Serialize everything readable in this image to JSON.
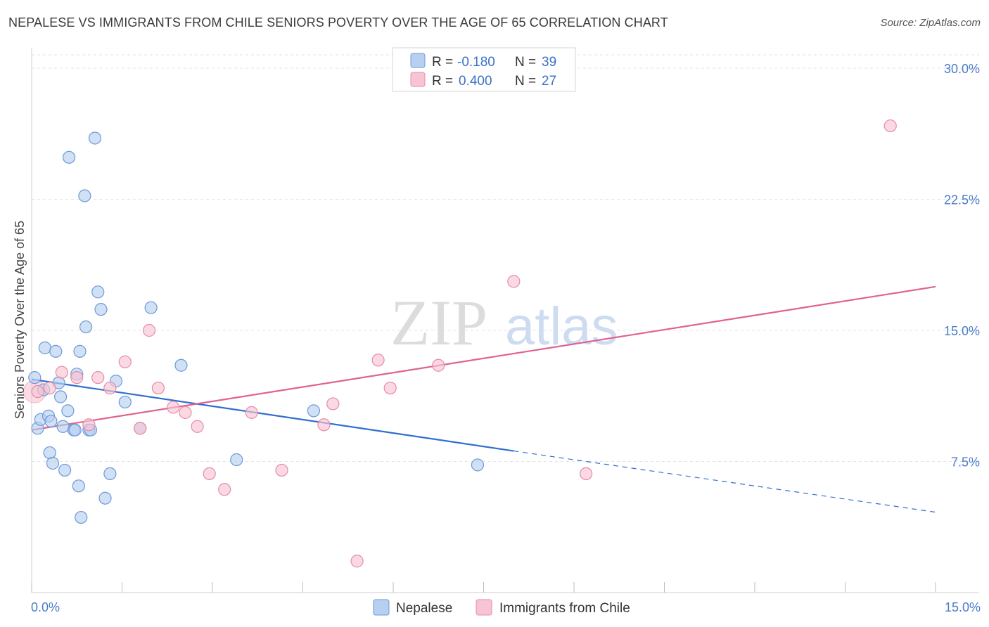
{
  "title": "NEPALESE VS IMMIGRANTS FROM CHILE SENIORS POVERTY OVER THE AGE OF 65 CORRELATION CHART",
  "source": "Source: ZipAtlas.com",
  "watermark": {
    "zip": "ZIP",
    "atlas": "atlas"
  },
  "colors": {
    "nepalese_fill": "#b7cff0",
    "nepalese_stroke": "#6d9ad8",
    "nepalese_line": "#2f6fce",
    "chile_fill": "#f7c4d4",
    "chile_stroke": "#e88aa8",
    "chile_line": "#e0628f",
    "axis_text": "#4a7cc9",
    "grid": "#e3e3e3"
  },
  "legend": {
    "rows": [
      {
        "r_label": "R =",
        "r_value": "-0.180",
        "n_label": "N =",
        "n_value": "39"
      },
      {
        "r_label": "R =",
        "r_value": "0.400",
        "n_label": "N =",
        "n_value": "27"
      }
    ]
  },
  "chart_data": {
    "type": "scatter",
    "title": "NEPALESE VS IMMIGRANTS FROM CHILE SENIORS POVERTY OVER THE AGE OF 65 CORRELATION CHART",
    "xlabel": "",
    "ylabel": "Seniors Poverty Over the Age of 65",
    "xlim": [
      0,
      15
    ],
    "ylim": [
      0,
      31.5
    ],
    "x_tick_labels": [
      "0.0%",
      "15.0%"
    ],
    "y_ticks": [
      7.5,
      15.0,
      22.5,
      30.0
    ],
    "y_tick_labels": [
      "7.5%",
      "15.0%",
      "22.5%",
      "30.0%"
    ],
    "legend_entries": [
      "Nepalese",
      "Immigrants from Chile"
    ],
    "series": [
      {
        "name": "Nepalese",
        "points": [
          [
            0.05,
            12.3
          ],
          [
            0.1,
            9.4
          ],
          [
            0.15,
            9.9
          ],
          [
            0.2,
            11.6
          ],
          [
            0.22,
            14.0
          ],
          [
            0.28,
            10.1
          ],
          [
            0.3,
            8.0
          ],
          [
            0.32,
            9.8
          ],
          [
            0.35,
            7.4
          ],
          [
            0.4,
            13.8
          ],
          [
            0.45,
            12.0
          ],
          [
            0.48,
            11.2
          ],
          [
            0.52,
            9.5
          ],
          [
            0.55,
            7.0
          ],
          [
            0.6,
            10.4
          ],
          [
            0.62,
            24.9
          ],
          [
            0.7,
            9.3
          ],
          [
            0.72,
            9.3
          ],
          [
            0.75,
            12.5
          ],
          [
            0.78,
            6.1
          ],
          [
            0.8,
            13.8
          ],
          [
            0.82,
            4.3
          ],
          [
            0.88,
            22.7
          ],
          [
            0.9,
            15.2
          ],
          [
            0.95,
            9.3
          ],
          [
            0.98,
            9.3
          ],
          [
            1.05,
            26.0
          ],
          [
            1.1,
            17.2
          ],
          [
            1.15,
            16.2
          ],
          [
            1.22,
            5.4
          ],
          [
            1.3,
            6.8
          ],
          [
            1.4,
            12.1
          ],
          [
            1.55,
            10.9
          ],
          [
            1.8,
            9.4
          ],
          [
            1.98,
            16.3
          ],
          [
            2.48,
            13.0
          ],
          [
            3.4,
            7.6
          ],
          [
            4.68,
            10.4
          ],
          [
            7.4,
            7.3
          ]
        ],
        "trend": {
          "x0": 0.0,
          "y0": 12.2,
          "x1": 8.0,
          "y1": 8.1,
          "dash_x1": 15.0,
          "dash_y1": 4.6
        }
      },
      {
        "name": "Immigrants from Chile",
        "points": [
          [
            0.1,
            11.5
          ],
          [
            0.3,
            11.7
          ],
          [
            0.5,
            12.6
          ],
          [
            0.75,
            12.3
          ],
          [
            0.95,
            9.6
          ],
          [
            1.1,
            12.3
          ],
          [
            1.3,
            11.7
          ],
          [
            1.55,
            13.2
          ],
          [
            1.8,
            9.4
          ],
          [
            1.95,
            15.0
          ],
          [
            2.1,
            11.7
          ],
          [
            2.35,
            10.6
          ],
          [
            2.55,
            10.3
          ],
          [
            2.75,
            9.5
          ],
          [
            2.95,
            6.8
          ],
          [
            3.2,
            5.9
          ],
          [
            3.65,
            10.3
          ],
          [
            4.15,
            7.0
          ],
          [
            4.85,
            9.6
          ],
          [
            5.0,
            10.8
          ],
          [
            5.4,
            1.8
          ],
          [
            5.75,
            13.3
          ],
          [
            5.95,
            11.7
          ],
          [
            6.75,
            13.0
          ],
          [
            8.0,
            17.8
          ],
          [
            9.2,
            6.8
          ],
          [
            14.25,
            26.7
          ]
        ],
        "trend": {
          "x0": 0.0,
          "y0": 9.3,
          "x1": 15.0,
          "y1": 17.5
        }
      }
    ]
  }
}
